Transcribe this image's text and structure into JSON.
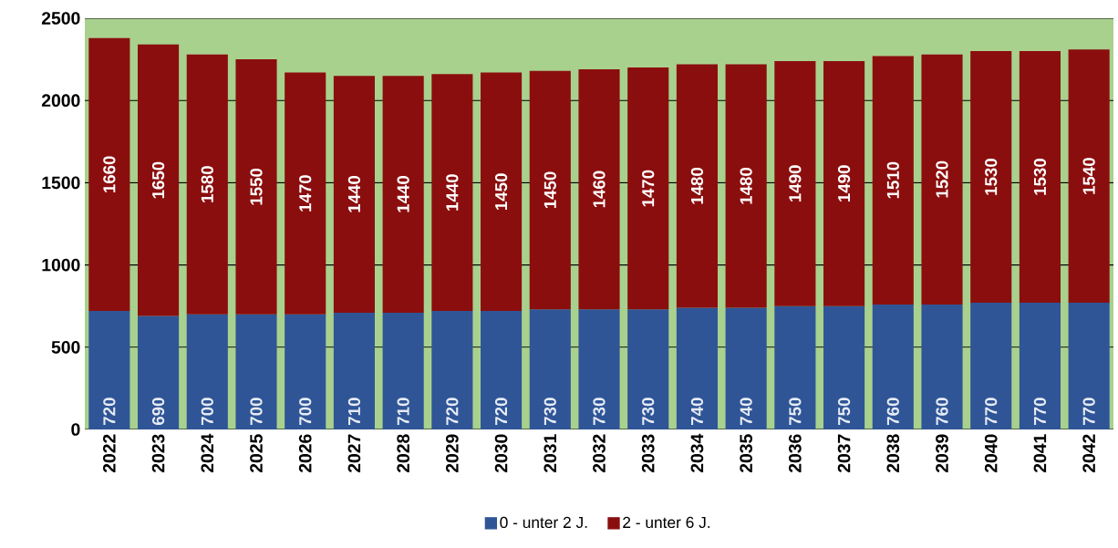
{
  "chart_data": {
    "type": "bar",
    "stacked": true,
    "categories": [
      "2022",
      "2023",
      "2024",
      "2025",
      "2026",
      "2027",
      "2028",
      "2029",
      "2030",
      "2031",
      "2032",
      "2033",
      "2034",
      "2035",
      "2036",
      "2037",
      "2038",
      "2039",
      "2040",
      "2041",
      "2042"
    ],
    "series": [
      {
        "name": "0 - unter 2 J.",
        "color": "#2f5597",
        "values": [
          720,
          690,
          700,
          700,
          700,
          710,
          710,
          720,
          720,
          730,
          730,
          730,
          740,
          740,
          750,
          750,
          760,
          760,
          770,
          770,
          770
        ]
      },
      {
        "name": "2 - unter 6 J.",
        "color": "#8b0e0e",
        "values": [
          1660,
          1650,
          1580,
          1550,
          1470,
          1440,
          1440,
          1440,
          1450,
          1450,
          1460,
          1470,
          1480,
          1480,
          1490,
          1490,
          1510,
          1520,
          1530,
          1530,
          1540
        ]
      }
    ],
    "bands": [
      {
        "axis": "y",
        "from": 0,
        "to": 2500,
        "color": "#a9d18e"
      }
    ],
    "ylim": [
      0,
      2500
    ],
    "yticks": [
      0,
      500,
      1000,
      1500,
      2000,
      2500
    ],
    "grid": "y",
    "legend": "bottom",
    "data_labels": true
  }
}
